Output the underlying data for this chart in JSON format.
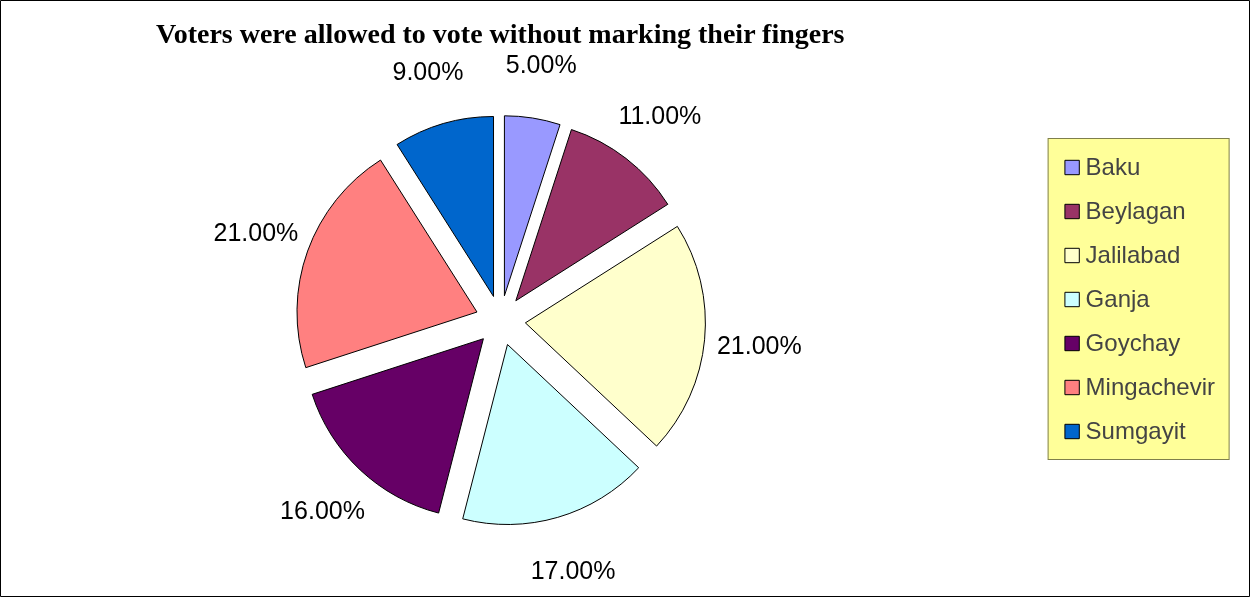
{
  "chart_data": {
    "type": "pie",
    "title": "Voters were allowed to vote without marking their fingers",
    "categories": [
      "Baku",
      "Beylagan",
      "Jalilabad",
      "Ganja",
      "Goychay",
      "Mingachevir",
      "Sumgayit"
    ],
    "values": [
      5,
      11,
      21,
      17,
      16,
      21,
      9
    ],
    "colors": [
      "#9999ff",
      "#993366",
      "#ffffcc",
      "#ccffff",
      "#660066",
      "#ff8080",
      "#0066cc"
    ],
    "value_labels": [
      "5.00%",
      "11.00%",
      "21.00%",
      "17.00%",
      "16.00%",
      "21.00%",
      "9.00%"
    ],
    "legend": "right"
  }
}
